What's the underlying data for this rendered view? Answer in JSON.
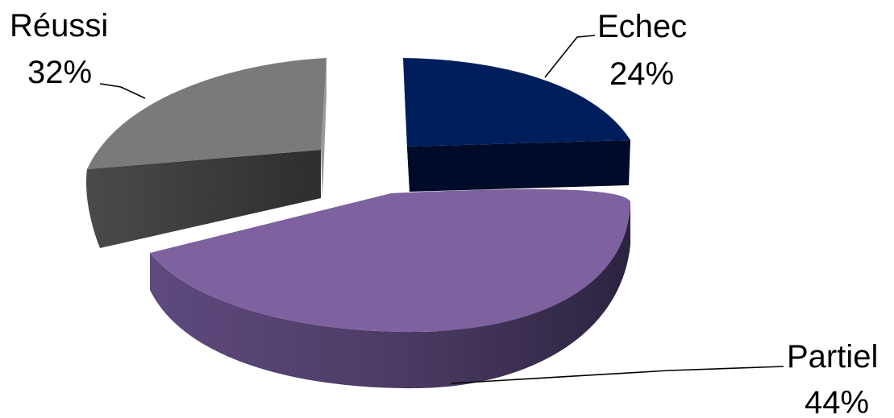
{
  "chart_data": {
    "type": "pie",
    "style": "3d-exploded",
    "title": "",
    "slices": [
      {
        "label": "Echec",
        "pct_label": "24%",
        "value": 24,
        "color": "#001E5C",
        "side_color": "#000B2A"
      },
      {
        "label": "Partiel",
        "pct_label": "44%",
        "value": 44,
        "color": "#7E62A0",
        "side_color": "#4A3A62"
      },
      {
        "label": "Réussi",
        "pct_label": "32%",
        "value": 32,
        "color": "#7A7A7A",
        "side_color": "#353535"
      }
    ],
    "legend": "none",
    "data_labels": "outside-with-leader-lines"
  }
}
